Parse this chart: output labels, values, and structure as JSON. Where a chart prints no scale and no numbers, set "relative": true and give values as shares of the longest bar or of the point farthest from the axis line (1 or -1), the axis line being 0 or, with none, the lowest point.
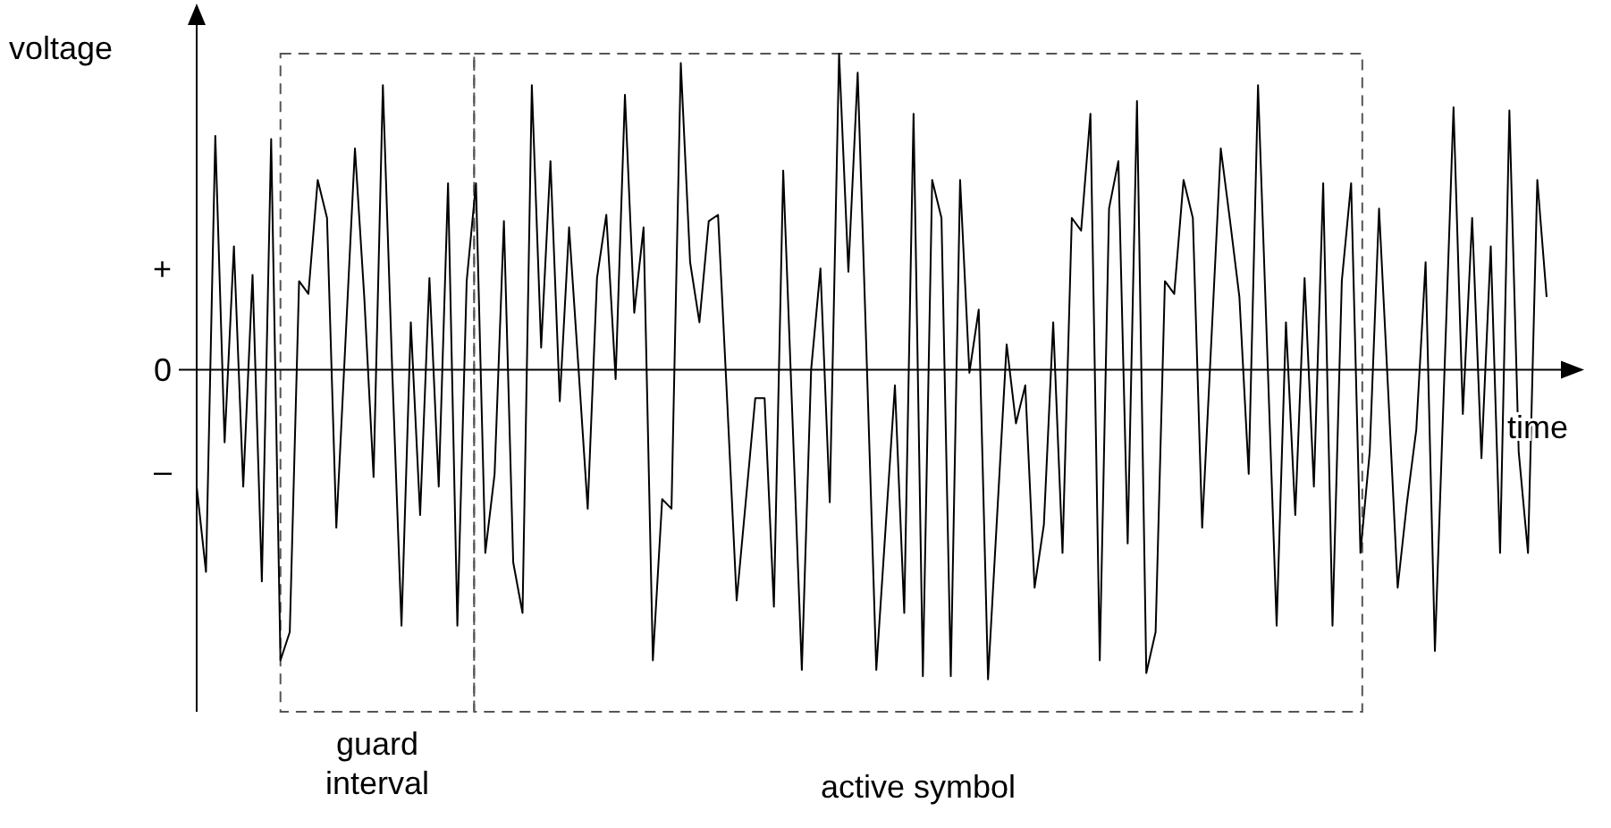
{
  "chart_data": {
    "type": "line",
    "relative": true,
    "xlabel": "time",
    "ylabel": "voltage",
    "categories": [
      null,
      null,
      null,
      null,
      null,
      null,
      null,
      null,
      null,
      null,
      null,
      null,
      null,
      null,
      null,
      null,
      null,
      null,
      null,
      null,
      null,
      null,
      null,
      null,
      null,
      null,
      null,
      null,
      null,
      null,
      null,
      null,
      null,
      null,
      null,
      null,
      null,
      null,
      null,
      null,
      null,
      null,
      null,
      null,
      null,
      null,
      null,
      null,
      null,
      null,
      null,
      null,
      null,
      null,
      null,
      null,
      null,
      null,
      null,
      null,
      null,
      null,
      null,
      null,
      null,
      null,
      null,
      null,
      null,
      null,
      null,
      null,
      null,
      null,
      null,
      null,
      null,
      null,
      null,
      null,
      null,
      null,
      null,
      null,
      null,
      null,
      null,
      null,
      null,
      null,
      null,
      null,
      null,
      null,
      null,
      null,
      null,
      null,
      null,
      null,
      null,
      null,
      null,
      null,
      null,
      null,
      null,
      null,
      null,
      null,
      null,
      null,
      null,
      null,
      null,
      null,
      null,
      null,
      null,
      null,
      null,
      null,
      null,
      null,
      null,
      null,
      null,
      null,
      null,
      null,
      null,
      null,
      null,
      null,
      null,
      null,
      null,
      null,
      null,
      null,
      null,
      null,
      null,
      null,
      null,
      null
    ],
    "series": [
      {
        "color": "#000000",
        "values": [
          -0.37,
          -0.64,
          0.74,
          -0.23,
          0.39,
          -0.37,
          0.3,
          -0.67,
          0.73,
          -0.92,
          -0.83,
          0.28,
          0.24,
          0.6,
          0.48,
          -0.5,
          0.1,
          0.7,
          0.23,
          -0.34,
          0.9,
          0.0,
          -0.81,
          0.15,
          -0.46,
          0.29,
          -0.37,
          0.59,
          -0.81,
          0.28,
          0.59,
          -0.58,
          -0.33,
          0.47,
          -0.61,
          -0.77,
          0.9,
          0.07,
          0.66,
          -0.1,
          0.45,
          0.01,
          -0.44,
          0.29,
          0.49,
          -0.03,
          0.87,
          0.18,
          0.45,
          -0.92,
          -0.41,
          -0.44,
          0.97,
          0.34,
          0.15,
          0.47,
          0.49,
          -0.11,
          -0.73,
          -0.41,
          -0.09,
          -0.09,
          -0.75,
          0.63,
          -0.16,
          -0.95,
          0.0,
          0.32,
          -0.42,
          1.0,
          0.31,
          0.94,
          0.0,
          -0.95,
          -0.5,
          -0.05,
          -0.77,
          0.81,
          -0.97,
          0.6,
          0.48,
          -0.97,
          0.6,
          -0.01,
          0.19,
          -0.98,
          -0.45,
          0.08,
          -0.17,
          -0.05,
          -0.69,
          -0.49,
          0.15,
          -0.58,
          0.48,
          0.44,
          0.81,
          -0.92,
          0.51,
          0.66,
          -0.55,
          0.85,
          -0.96,
          -0.83,
          0.28,
          0.24,
          0.6,
          0.48,
          -0.5,
          0.1,
          0.7,
          0.47,
          0.23,
          -0.33,
          0.9,
          0.05,
          -0.81,
          0.15,
          -0.46,
          0.29,
          -0.37,
          0.59,
          -0.81,
          0.28,
          0.59,
          -0.58,
          -0.26,
          0.51,
          -0.08,
          -0.69,
          -0.42,
          -0.19,
          0.34,
          -0.89,
          -0.03,
          0.83,
          -0.14,
          0.48,
          -0.28,
          0.39,
          -0.58,
          0.82,
          -0.26,
          -0.58,
          0.6,
          0.23
        ]
      }
    ],
    "annotations": [
      "+",
      "0",
      "–",
      "guard interval",
      "active symbol"
    ]
  }
}
